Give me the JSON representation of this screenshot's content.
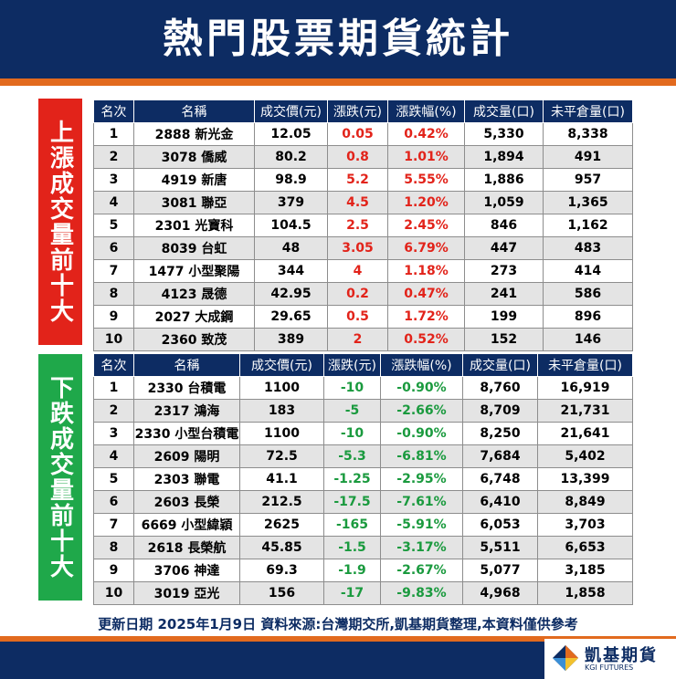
{
  "title": "熱門股票期貨統計",
  "side_up": "上漲成交量前十大",
  "side_down": "下跌成交量前十大",
  "headers": [
    "名次",
    "名稱",
    "成交價(元)",
    "漲跌(元)",
    "漲跌幅(%)",
    "成交量(口)",
    "未平倉量(口)"
  ],
  "rising": [
    {
      "rank": "1",
      "name": "2888 新光金",
      "price": "12.05",
      "change": "0.05",
      "pct": "0.42%",
      "volume": "5,330",
      "oi": "8,338"
    },
    {
      "rank": "2",
      "name": "3078 僑威",
      "price": "80.2",
      "change": "0.8",
      "pct": "1.01%",
      "volume": "1,894",
      "oi": "491"
    },
    {
      "rank": "3",
      "name": "4919 新唐",
      "price": "98.9",
      "change": "5.2",
      "pct": "5.55%",
      "volume": "1,886",
      "oi": "957"
    },
    {
      "rank": "4",
      "name": "3081 聯亞",
      "price": "379",
      "change": "4.5",
      "pct": "1.20%",
      "volume": "1,059",
      "oi": "1,365"
    },
    {
      "rank": "5",
      "name": "2301 光寶科",
      "price": "104.5",
      "change": "2.5",
      "pct": "2.45%",
      "volume": "846",
      "oi": "1,162"
    },
    {
      "rank": "6",
      "name": "8039 台虹",
      "price": "48",
      "change": "3.05",
      "pct": "6.79%",
      "volume": "447",
      "oi": "483"
    },
    {
      "rank": "7",
      "name": "1477 小型聚陽",
      "price": "344",
      "change": "4",
      "pct": "1.18%",
      "volume": "273",
      "oi": "414"
    },
    {
      "rank": "8",
      "name": "4123 晟德",
      "price": "42.95",
      "change": "0.2",
      "pct": "0.47%",
      "volume": "241",
      "oi": "586"
    },
    {
      "rank": "9",
      "name": "2027 大成鋼",
      "price": "29.65",
      "change": "0.5",
      "pct": "1.72%",
      "volume": "199",
      "oi": "896"
    },
    {
      "rank": "10",
      "name": "2360 致茂",
      "price": "389",
      "change": "2",
      "pct": "0.52%",
      "volume": "152",
      "oi": "146"
    }
  ],
  "falling": [
    {
      "rank": "1",
      "name": "2330 台積電",
      "price": "1100",
      "change": "-10",
      "pct": "-0.90%",
      "volume": "8,760",
      "oi": "16,919"
    },
    {
      "rank": "2",
      "name": "2317 鴻海",
      "price": "183",
      "change": "-5",
      "pct": "-2.66%",
      "volume": "8,709",
      "oi": "21,731"
    },
    {
      "rank": "3",
      "name": "2330 小型台積電",
      "price": "1100",
      "change": "-10",
      "pct": "-0.90%",
      "volume": "8,250",
      "oi": "21,641"
    },
    {
      "rank": "4",
      "name": "2609 陽明",
      "price": "72.5",
      "change": "-5.3",
      "pct": "-6.81%",
      "volume": "7,684",
      "oi": "5,402"
    },
    {
      "rank": "5",
      "name": "2303 聯電",
      "price": "41.1",
      "change": "-1.25",
      "pct": "-2.95%",
      "volume": "6,748",
      "oi": "13,399"
    },
    {
      "rank": "6",
      "name": "2603 長榮",
      "price": "212.5",
      "change": "-17.5",
      "pct": "-7.61%",
      "volume": "6,410",
      "oi": "8,849"
    },
    {
      "rank": "7",
      "name": "6669 小型緯穎",
      "price": "2625",
      "change": "-165",
      "pct": "-5.91%",
      "volume": "6,053",
      "oi": "3,703"
    },
    {
      "rank": "8",
      "name": "2618 長榮航",
      "price": "45.85",
      "change": "-1.5",
      "pct": "-3.17%",
      "volume": "5,511",
      "oi": "6,653"
    },
    {
      "rank": "9",
      "name": "3706 神達",
      "price": "69.3",
      "change": "-1.9",
      "pct": "-2.67%",
      "volume": "5,077",
      "oi": "3,185"
    },
    {
      "rank": "10",
      "name": "3019 亞光",
      "price": "156",
      "change": "-17",
      "pct": "-9.83%",
      "volume": "4,968",
      "oi": "1,858"
    }
  ],
  "footer": "更新日期  2025年1月9日 資料來源:台灣期交所,凱基期貨整理,本資料僅供參考",
  "logo": {
    "name": "凱基期貨",
    "sub": "KGI FUTURES"
  },
  "colors": {
    "navy": "#0d2c63",
    "orange": "#e26a1e",
    "red": "#e2231a",
    "green": "#1fa84a"
  }
}
